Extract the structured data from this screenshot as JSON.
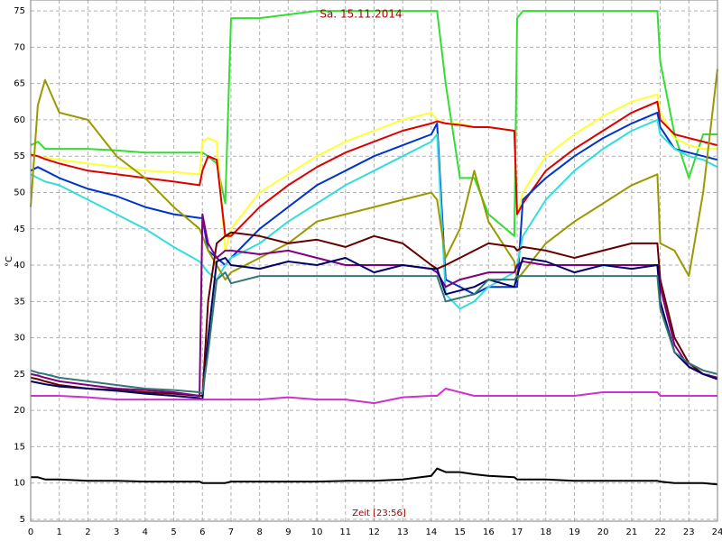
{
  "chart_data": {
    "type": "line",
    "title": "Sa. 15.11.2014",
    "xlabel": "Zeit [23:56]",
    "ylabel": "°C",
    "x": [
      0,
      0.25,
      0.5,
      1,
      2,
      3,
      4,
      5,
      5.9,
      6,
      6.2,
      6.5,
      6.8,
      7,
      8,
      9,
      10,
      11,
      12,
      13,
      14,
      14.2,
      14.5,
      15,
      15.5,
      16,
      16.9,
      17,
      17.2,
      18,
      19,
      20,
      21,
      21.9,
      22,
      22.5,
      23,
      23.5,
      24
    ],
    "xlim": [
      0,
      24
    ],
    "xticks": [
      0,
      1,
      2,
      3,
      4,
      5,
      6,
      7,
      8,
      9,
      10,
      11,
      12,
      13,
      14,
      15,
      16,
      17,
      18,
      19,
      20,
      21,
      22,
      23,
      24
    ],
    "ylim": [
      4.75,
      76.5
    ],
    "yticks": [
      5,
      10,
      15,
      20,
      25,
      30,
      35,
      40,
      45,
      50,
      55,
      60,
      65,
      70,
      75
    ],
    "grid": true,
    "series": [
      {
        "color": "#33dd33",
        "values": [
          56.5,
          57,
          56,
          56,
          56,
          55.8,
          55.5,
          55.5,
          55.5,
          55.5,
          55,
          54,
          48.5,
          74,
          74,
          74.5,
          75,
          75,
          75,
          75,
          75,
          75,
          65,
          52,
          52,
          47,
          44,
          74,
          75,
          75,
          75,
          75,
          75,
          75,
          68,
          58,
          52,
          58,
          58
        ]
      },
      {
        "color": "#ffff33",
        "values": [
          55.5,
          55,
          54.8,
          54.5,
          54,
          53.5,
          53,
          52.8,
          52.5,
          57,
          57.5,
          57,
          42,
          45,
          50,
          52.5,
          55,
          57,
          58.5,
          60,
          61,
          60,
          59.5,
          59.5,
          59,
          59,
          58.5,
          47,
          50,
          55,
          58,
          60.5,
          62.5,
          63.5,
          61,
          57.5,
          56.5,
          56,
          56
        ]
      },
      {
        "color": "#dd0000",
        "values": [
          55.2,
          55,
          54.6,
          54,
          53,
          52.5,
          52,
          51.5,
          51,
          53,
          55,
          54.5,
          44,
          44,
          48,
          51,
          53.5,
          55.5,
          57,
          58.5,
          59.5,
          59.8,
          59.5,
          59.3,
          59,
          59,
          58.5,
          47,
          48.5,
          53,
          56,
          58.5,
          61,
          62.5,
          60,
          58,
          57.5,
          57,
          56.5
        ]
      },
      {
        "color": "#0033cc",
        "values": [
          53,
          53.5,
          53,
          52,
          50.5,
          49.5,
          48,
          47,
          46.5,
          46.5,
          42,
          41,
          40,
          41,
          45,
          48,
          51,
          53,
          55,
          56.5,
          58,
          59.5,
          38,
          37,
          36,
          37,
          37,
          37,
          49,
          52,
          55,
          57.5,
          59.5,
          61,
          59,
          56,
          55.5,
          55,
          54.5
        ]
      },
      {
        "color": "#33dddd",
        "values": [
          52.5,
          52,
          51.5,
          51,
          49,
          47,
          45,
          42.5,
          40.5,
          40,
          39,
          38,
          40,
          41,
          43,
          46,
          48.5,
          51,
          53,
          55,
          57,
          58,
          36,
          34,
          35,
          37,
          39,
          40,
          44,
          49,
          53,
          56,
          58.5,
          60,
          58,
          56,
          55,
          54.5,
          53.5
        ]
      },
      {
        "color": "#999900",
        "values": [
          48,
          62,
          65.5,
          61,
          60,
          55,
          52,
          48,
          45,
          44,
          42,
          40,
          38,
          39,
          41,
          43,
          46,
          47,
          48,
          49,
          50,
          49,
          41,
          45,
          53,
          46,
          40.5,
          38,
          39,
          43,
          46,
          48.5,
          51,
          52.5,
          43,
          42,
          38.5,
          50,
          67
        ]
      },
      {
        "color": "#660000",
        "values": [
          24.5,
          24.3,
          24,
          23.5,
          23,
          22.8,
          22.5,
          22.3,
          22,
          22,
          35,
          43,
          44,
          44.5,
          44,
          43,
          43.5,
          42.5,
          44,
          43,
          40,
          39.5,
          40,
          41,
          42,
          43,
          42.5,
          42,
          42.5,
          42,
          41,
          42,
          43,
          43,
          38,
          30,
          26.5,
          25,
          24.5
        ]
      },
      {
        "color": "#800080",
        "values": [
          25,
          24.8,
          24.5,
          24,
          23.5,
          23,
          22.8,
          22.5,
          22,
          47,
          43,
          41,
          42,
          42,
          41.5,
          42,
          41,
          40,
          40,
          40,
          39.5,
          39,
          37,
          38,
          38.5,
          39,
          39,
          40,
          40.5,
          40,
          40,
          40,
          40,
          40,
          37,
          29,
          26,
          25,
          24.5
        ]
      },
      {
        "color": "#000066",
        "values": [
          24,
          23.8,
          23.6,
          23.3,
          23,
          22.7,
          22.3,
          22,
          21.7,
          21.5,
          30,
          40.5,
          41,
          40,
          39.5,
          40.5,
          40,
          41,
          39,
          40,
          39.5,
          39.5,
          36,
          36.5,
          37,
          38,
          37,
          38.5,
          41,
          40.5,
          39,
          40,
          39.5,
          40,
          35,
          28,
          26,
          25,
          24.3
        ]
      },
      {
        "color": "#337777",
        "values": [
          25.5,
          25.2,
          25,
          24.5,
          24,
          23.5,
          23,
          22.8,
          22.5,
          22.3,
          28,
          38,
          39,
          37.5,
          38.5,
          38.5,
          38.5,
          38.5,
          38.5,
          38.5,
          38.5,
          38.5,
          35,
          35.5,
          36,
          38,
          38,
          38.5,
          38.5,
          38.5,
          38.5,
          38.5,
          38.5,
          38.5,
          34,
          28,
          26.5,
          25.5,
          25
        ]
      },
      {
        "color": "#cc33cc",
        "values": [
          22,
          22,
          22,
          22,
          21.8,
          21.5,
          21.5,
          21.5,
          21.5,
          21.5,
          21.5,
          21.5,
          21.5,
          21.5,
          21.5,
          21.8,
          21.5,
          21.5,
          21,
          21.8,
          22,
          22,
          23,
          22.5,
          22,
          22,
          22,
          22,
          22,
          22,
          22,
          22.5,
          22.5,
          22.5,
          22,
          22,
          22,
          22,
          22
        ]
      },
      {
        "color": "#000000",
        "values": [
          10.8,
          10.8,
          10.5,
          10.5,
          10.3,
          10.3,
          10.2,
          10.2,
          10.2,
          10,
          10,
          10,
          10,
          10.2,
          10.2,
          10.2,
          10.2,
          10.3,
          10.3,
          10.5,
          11,
          12,
          11.5,
          11.5,
          11.2,
          11,
          10.8,
          10.5,
          10.5,
          10.5,
          10.3,
          10.3,
          10.3,
          10.3,
          10.2,
          10,
          10,
          10,
          9.8
        ]
      }
    ]
  }
}
